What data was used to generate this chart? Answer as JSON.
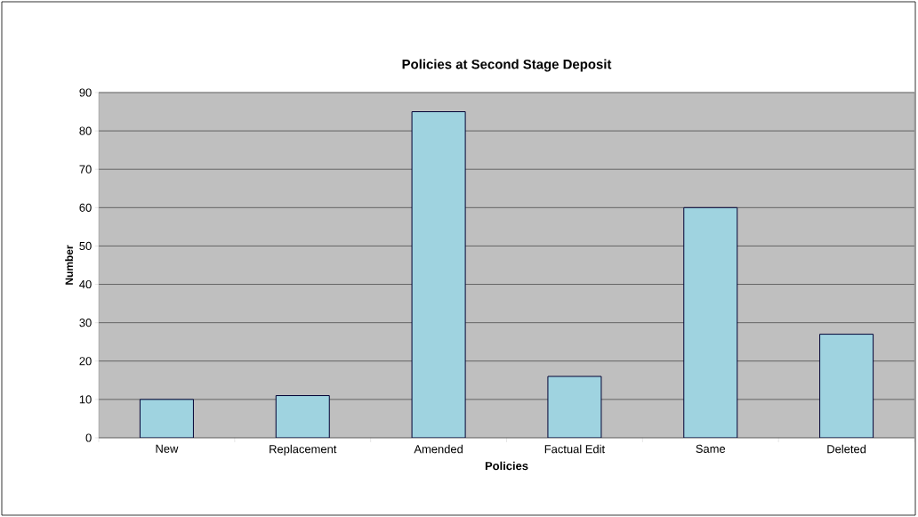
{
  "chart_data": {
    "type": "bar",
    "title": "Policies at Second Stage Deposit",
    "xlabel": "Policies",
    "ylabel": "Number",
    "categories": [
      "New",
      "Replacement",
      "Amended",
      "Factual Edit",
      "Same",
      "Deleted"
    ],
    "values": [
      10,
      11,
      85,
      16,
      60,
      27
    ],
    "color": "#9fd3e0",
    "ylim": [
      0,
      90
    ],
    "yticks": [
      0,
      10,
      20,
      30,
      40,
      50,
      60,
      70,
      80,
      90
    ],
    "grid": "y"
  }
}
